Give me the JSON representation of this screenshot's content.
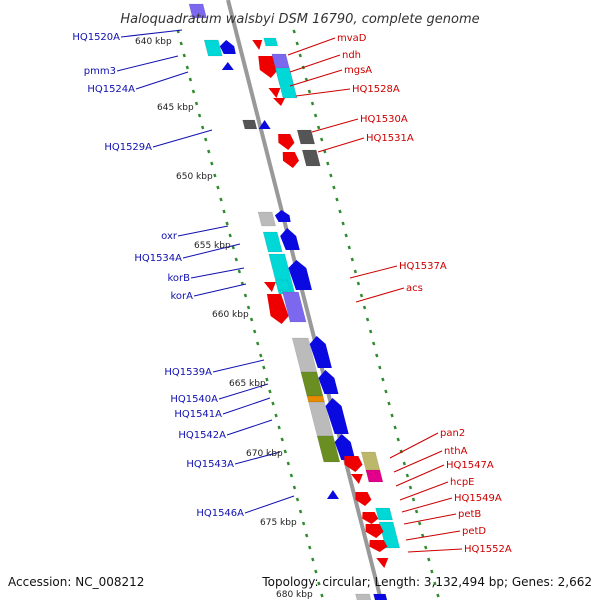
{
  "title": "Haloquadratum walsbyi DSM 16790, complete genome",
  "accession": "Accession: NC_008212",
  "topology": "Topology: circular; Length: 3,132,494 bp; Genes: 2,662",
  "kbp_ticks": [
    "640 kbp",
    "645 kbp",
    "650 kbp",
    "655 kbp",
    "660 kbp",
    "665 kbp",
    "670 kbp",
    "675 kbp",
    "680 kbp"
  ],
  "left_labels": [
    "HQ1520A",
    "pmm3",
    "HQ1524A",
    "HQ1529A",
    "oxr",
    "HQ1534A",
    "korB",
    "korA",
    "HQ1539A",
    "HQ1540A",
    "HQ1541A",
    "HQ1542A",
    "HQ1543A",
    "HQ1546A"
  ],
  "right_labels": [
    "mvaD",
    "ndh",
    "mgsA",
    "HQ1528A",
    "HQ1530A",
    "HQ1531A",
    "HQ1537A",
    "acs",
    "pan2",
    "nthA",
    "HQ1547A",
    "hcpE",
    "HQ1549A",
    "petB",
    "petD",
    "HQ1552A"
  ],
  "colors": {
    "left_label": "#1010b0",
    "right_label": "#cc0000",
    "forward": "#0a0ae0",
    "reverse": "#ee0000",
    "cyan": "#00d8d8",
    "gray": "#bbbbbb",
    "dark": "#555555",
    "olive": "#6b8e23",
    "purple": "#7b68ee",
    "khaki": "#bdb76b",
    "magenta": "#e0008a",
    "orange": "#e68a00",
    "backbone": "#999999",
    "ticks": "#2e8b2e"
  }
}
